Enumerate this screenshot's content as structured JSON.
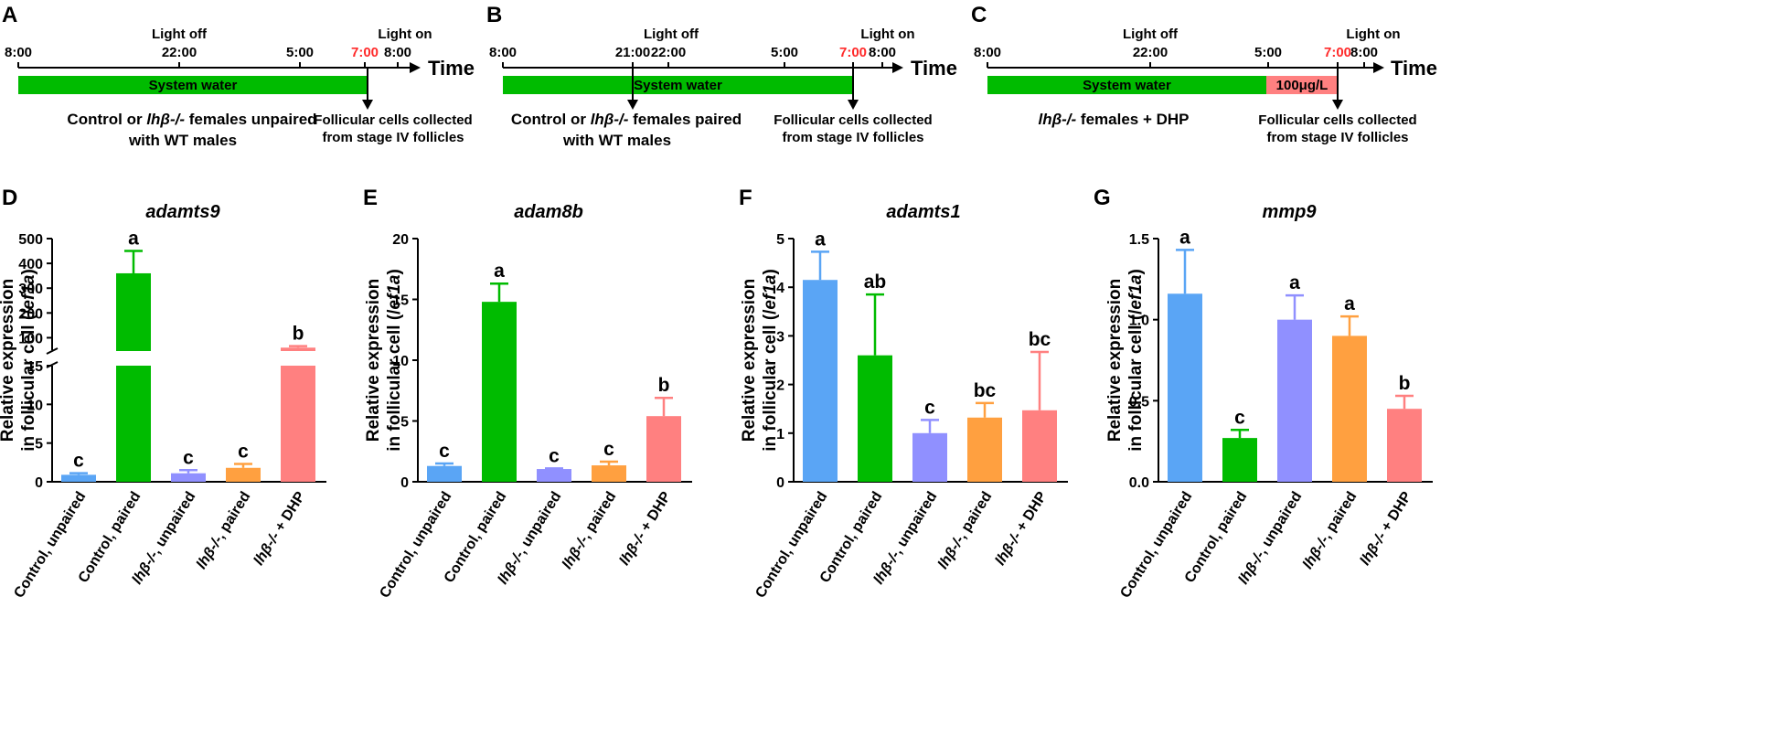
{
  "timelines": [
    {
      "panel": "A",
      "times": [
        "8:00",
        "22:00",
        "5:00",
        "7:00",
        "8:00"
      ],
      "light_off": "Light off",
      "light_on": "Light on",
      "time_label": "Time",
      "bar_label": "System water",
      "caption_left": [
        "Control or ",
        "lhβ-/-",
        " females unpaired",
        "with WT males"
      ],
      "caption_right": [
        "Follicular cells collected",
        "from stage IV follicles"
      ]
    },
    {
      "panel": "B",
      "times": [
        "8:00",
        "21:00",
        "22:00",
        "5:00",
        "7:00",
        "8:00"
      ],
      "light_off": "Light off",
      "light_on": "Light on",
      "time_label": "Time",
      "bar_label": "System water",
      "caption_left": [
        "Control or ",
        "lhβ-/-",
        " females paired",
        "with WT males"
      ],
      "caption_right": [
        "Follicular cells collected",
        "from stage IV follicles"
      ]
    },
    {
      "panel": "C",
      "times": [
        "8:00",
        "22:00",
        "5:00",
        "7:00",
        "8:00"
      ],
      "light_off": "Light off",
      "light_on": "Light on",
      "time_label": "Time",
      "bar_label": "System water",
      "dhp_label": "100μg/L",
      "caption_left": [
        "lhβ-/-",
        " females + DHP"
      ],
      "caption_right": [
        "Follicular cells collected",
        "from stage IV follicles"
      ]
    }
  ],
  "colors": {
    "green": "#00bb00",
    "salmon": "#ff8080",
    "blue": "#5aa5f5",
    "purple": "#9090ff",
    "orange": "#ffa040",
    "red_time": "#ff2a2a"
  },
  "ylabel": [
    "Relative expression",
    "in follicular cell (/ef1a)"
  ],
  "chart_data": [
    {
      "panel": "D",
      "type": "bar",
      "title": "adamts9",
      "categories": [
        "Control, unpaired",
        "Control, paired",
        "lhβ-/-, unpaired",
        "lhβ-/-, paired",
        "lhβ-/- + DHP"
      ],
      "values": [
        0.9,
        360,
        1.1,
        1.8,
        60
      ],
      "errors": [
        0.2,
        90,
        0.4,
        0.5,
        6
      ],
      "sig_labels": [
        "c",
        "a",
        "c",
        "c",
        "b"
      ],
      "broken_axis": true,
      "lower_ylim": [
        0,
        15
      ],
      "lower_ticks": [
        0,
        5,
        10,
        15
      ],
      "upper_ylim": [
        50,
        500
      ],
      "upper_ticks": [
        100,
        200,
        300,
        400,
        500
      ]
    },
    {
      "panel": "E",
      "type": "bar",
      "title": "adam8b",
      "categories": [
        "Control, unpaired",
        "Control, paired",
        "lhβ-/-, unpaired",
        "lhβ-/-, paired",
        "lhβ-/- + DHP"
      ],
      "values": [
        1.3,
        14.8,
        1.05,
        1.35,
        5.4
      ],
      "errors": [
        0.2,
        1.5,
        0.05,
        0.3,
        1.5
      ],
      "sig_labels": [
        "c",
        "a",
        "c",
        "c",
        "b"
      ],
      "ylim": [
        0,
        20
      ],
      "ticks": [
        0,
        5,
        10,
        15,
        20
      ]
    },
    {
      "panel": "F",
      "type": "bar",
      "title": "adamts1",
      "categories": [
        "Control, unpaired",
        "Control, paired",
        "lhβ-/-, unpaired",
        "lhβ-/-, paired",
        "lhβ-/- + DHP"
      ],
      "values": [
        4.15,
        2.6,
        1.0,
        1.32,
        1.47
      ],
      "errors": [
        0.58,
        1.25,
        0.27,
        0.3,
        1.2
      ],
      "sig_labels": [
        "a",
        "ab",
        "c",
        "bc",
        "bc"
      ],
      "ylim": [
        0,
        5
      ],
      "ticks": [
        0,
        1,
        2,
        3,
        4,
        5
      ]
    },
    {
      "panel": "G",
      "type": "bar",
      "title": "mmp9",
      "categories": [
        "Control, unpaired",
        "Control, paired",
        "lhβ-/-, unpaired",
        "lhβ-/-, paired",
        "lhβ-/- + DHP"
      ],
      "values": [
        1.16,
        0.27,
        1.0,
        0.9,
        0.45
      ],
      "errors": [
        0.27,
        0.05,
        0.15,
        0.12,
        0.08
      ],
      "sig_labels": [
        "a",
        "c",
        "a",
        "a",
        "b"
      ],
      "ylim": [
        0,
        1.5
      ],
      "ticks": [
        "0.0",
        "0.5",
        "1.0",
        "1.5"
      ]
    }
  ]
}
